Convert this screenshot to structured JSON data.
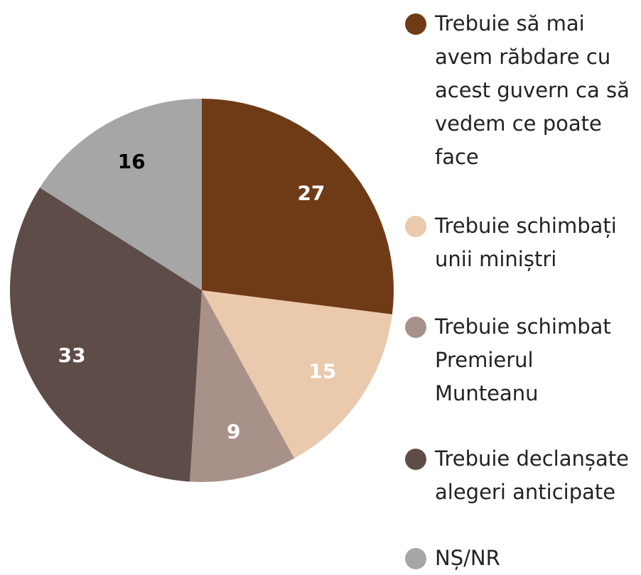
{
  "chart_data": {
    "type": "pie",
    "categories": [
      "Trebuie să mai avem răbdare cu acest guvern ca să vedem ce poate face",
      "Trebuie schimbați unii miniștri",
      "Trebuie schimbat Premierul Munteanu",
      "Trebuie declanșate alegeri anticipate",
      "NȘ/NR"
    ],
    "values": [
      27,
      15,
      9,
      33,
      16
    ],
    "colors": [
      "#6f3b16",
      "#ebc9ad",
      "#a89189",
      "#5e4c49",
      "#a6a6a6"
    ],
    "label_colors": [
      "#ffffff",
      "#ffffff",
      "#ffffff",
      "#ffffff",
      "#000000"
    ]
  }
}
